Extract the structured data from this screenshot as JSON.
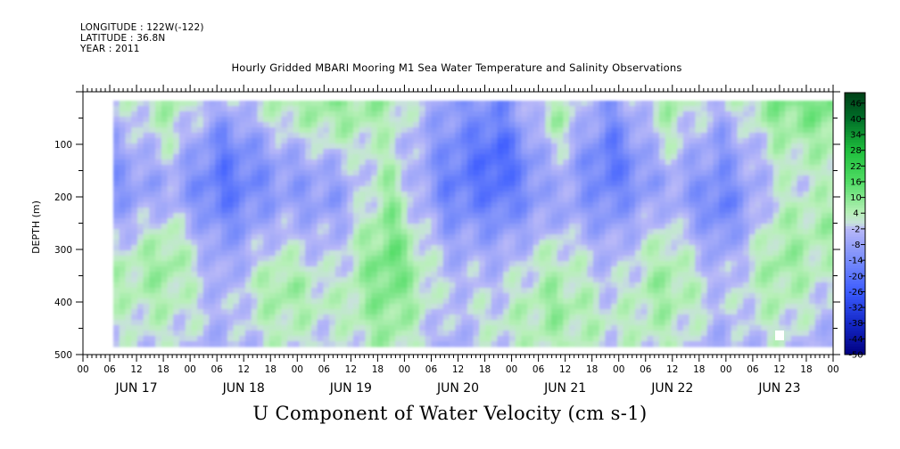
{
  "header": {
    "longitude": "LONGITUDE : 122W(-122)",
    "latitude": "LATITUDE : 36.8N",
    "year": "YEAR : 2011",
    "title": "Hourly Gridded MBARI Mooring M1 Sea Water Temperature and Salinity Observations"
  },
  "caption": "U Component of Water Velocity (cm s-1)",
  "chart_data": {
    "type": "heatmap",
    "title": "Hourly Gridded MBARI Mooring M1 Sea Water Temperature and Salinity Observations",
    "variable": "U Component of Water Velocity (cm s-1)",
    "ylabel": "DEPTH (m)",
    "ylim": [
      500,
      0
    ],
    "y_inverted": true,
    "y_ticks": [
      100,
      200,
      300,
      400,
      500
    ],
    "x_hour_labels": [
      "00",
      "06",
      "12",
      "18",
      "00",
      "06",
      "12",
      "18",
      "00",
      "06",
      "12",
      "18",
      "00",
      "06",
      "12",
      "18",
      "00",
      "06",
      "12",
      "18",
      "00",
      "06",
      "12",
      "18",
      "00",
      "06",
      "12",
      "18",
      "00"
    ],
    "x_day_labels": [
      "JUN 17",
      "JUN 18",
      "JUN 19",
      "JUN 20",
      "JUN 21",
      "JUN 22",
      "JUN 23"
    ],
    "colorbar_labels": [
      "46",
      "40",
      "34",
      "28",
      "22",
      "16",
      "10",
      "4",
      "-2",
      "-8",
      "-14",
      "-20",
      "-26",
      "-32",
      "-38",
      "-44",
      "-50"
    ],
    "colorbar_range": [
      -50,
      50
    ],
    "colors": {
      "strong_negative": "#000080",
      "negative": "#3c5cff",
      "near_zero_negative": "#b8b8f8",
      "near_zero_positive": "#b8f0b8",
      "positive": "#30d050",
      "strong_positive": "#004018"
    },
    "approx_field": {
      "depths": [
        20,
        60,
        100,
        140,
        180,
        220,
        260,
        300,
        340,
        380,
        420,
        460,
        490
      ],
      "times": [
        "JUN 17 06",
        "JUN 17 18",
        "JUN 18 06",
        "JUN 18 18",
        "JUN 19 06",
        "JUN 19 18",
        "JUN 20 06",
        "JUN 20 18",
        "JUN 21 06",
        "JUN 21 18",
        "JUN 22 06",
        "JUN 22 18",
        "JUN 23 06",
        "JUN 23 18"
      ],
      "values": [
        [
          -2,
          6,
          -4,
          4,
          8,
          6,
          -8,
          -14,
          4,
          -10,
          6,
          -2,
          10,
          12
        ],
        [
          -4,
          4,
          -10,
          2,
          6,
          4,
          -10,
          -16,
          6,
          -14,
          4,
          -6,
          8,
          10
        ],
        [
          -8,
          2,
          -16,
          -4,
          2,
          2,
          -12,
          -22,
          2,
          -18,
          2,
          -10,
          4,
          6
        ],
        [
          -10,
          -2,
          -18,
          -8,
          -4,
          4,
          -14,
          -24,
          -2,
          -20,
          -2,
          -12,
          2,
          4
        ],
        [
          -12,
          -6,
          -20,
          -10,
          -8,
          6,
          -16,
          -22,
          -4,
          -18,
          -6,
          -14,
          0,
          2
        ],
        [
          -10,
          -4,
          -18,
          -8,
          -10,
          8,
          -14,
          -18,
          -6,
          -14,
          -4,
          -18,
          2,
          4
        ],
        [
          -6,
          2,
          -14,
          -4,
          -6,
          10,
          -10,
          -12,
          -4,
          -10,
          0,
          -14,
          4,
          6
        ],
        [
          -2,
          6,
          -10,
          0,
          -4,
          12,
          -6,
          -8,
          2,
          -6,
          4,
          -10,
          6,
          4
        ],
        [
          2,
          8,
          -8,
          4,
          -2,
          14,
          -4,
          -4,
          4,
          -4,
          6,
          -6,
          8,
          2
        ],
        [
          4,
          6,
          -6,
          8,
          0,
          12,
          -2,
          -2,
          6,
          -2,
          8,
          -4,
          6,
          0
        ],
        [
          2,
          4,
          -4,
          6,
          2,
          10,
          -2,
          0,
          8,
          0,
          6,
          -2,
          4,
          -2
        ],
        [
          0,
          2,
          -4,
          4,
          0,
          8,
          -4,
          2,
          6,
          2,
          4,
          -4,
          2,
          -4
        ],
        [
          -2,
          0,
          -6,
          2,
          -2,
          6,
          -6,
          0,
          4,
          0,
          2,
          -6,
          0,
          -6
        ]
      ]
    }
  }
}
